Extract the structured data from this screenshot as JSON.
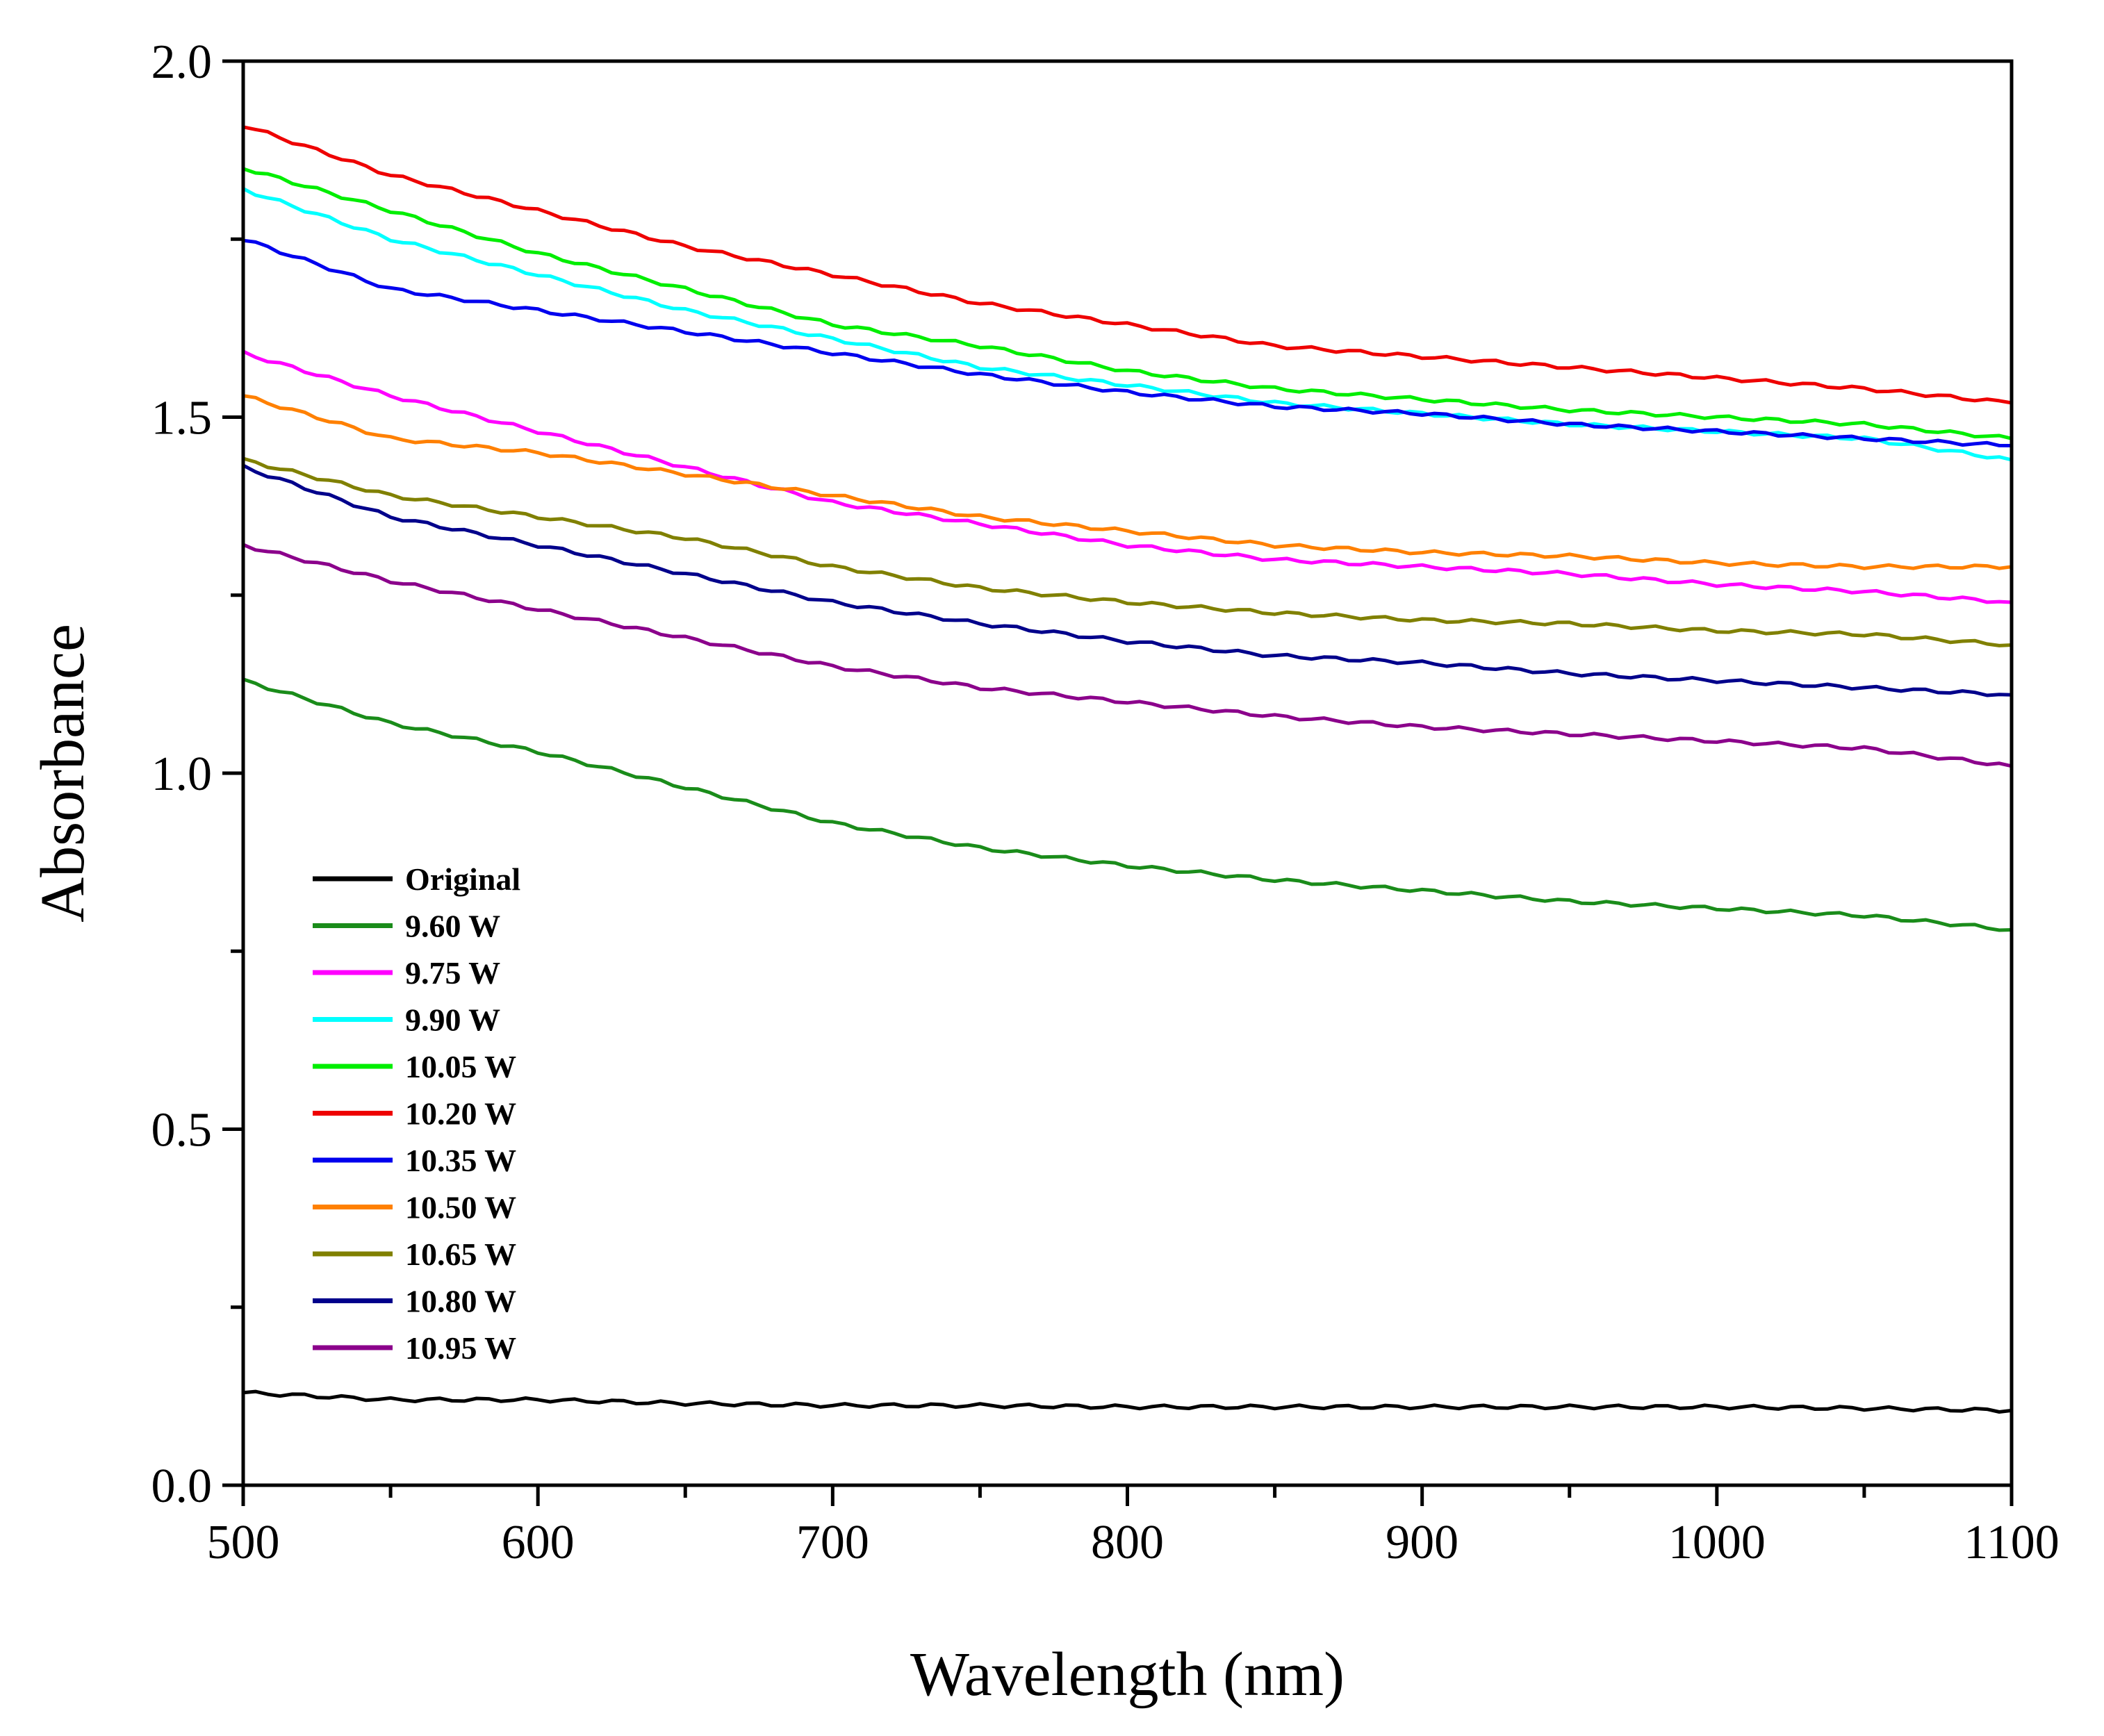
{
  "chart_data": {
    "type": "line",
    "title": "",
    "xlabel": "Wavelength (nm)",
    "ylabel": "Absorbance",
    "xlim": [
      500,
      1100
    ],
    "ylim": [
      0.0,
      2.0
    ],
    "x_ticks": [
      500,
      600,
      700,
      800,
      900,
      1000,
      1100
    ],
    "y_ticks": [
      "0.0",
      "0.5",
      "1.0",
      "1.5",
      "2.0"
    ],
    "grid": false,
    "legend_position": "lower-left",
    "x": [
      500,
      550,
      600,
      650,
      700,
      750,
      800,
      850,
      900,
      950,
      1000,
      1050,
      1100
    ],
    "series": [
      {
        "name": "Original",
        "color": "#000000",
        "values": [
          0.13,
          0.12,
          0.12,
          0.115,
          0.112,
          0.112,
          0.11,
          0.11,
          0.11,
          0.11,
          0.11,
          0.108,
          0.105
        ]
      },
      {
        "name": "9.60 W",
        "color": "#1a8c1a",
        "values": [
          1.13,
          1.07,
          1.03,
          0.98,
          0.93,
          0.895,
          0.87,
          0.85,
          0.835,
          0.82,
          0.81,
          0.8,
          0.78
        ]
      },
      {
        "name": "9.75 W",
        "color": "#ff00ff",
        "values": [
          1.59,
          1.53,
          1.48,
          1.43,
          1.38,
          1.35,
          1.32,
          1.3,
          1.29,
          1.28,
          1.265,
          1.255,
          1.24
        ]
      },
      {
        "name": "9.90 W",
        "color": "#00ffff",
        "values": [
          1.82,
          1.75,
          1.7,
          1.65,
          1.61,
          1.57,
          1.545,
          1.52,
          1.505,
          1.49,
          1.48,
          1.47,
          1.44
        ]
      },
      {
        "name": "10.05 W",
        "color": "#00ee00",
        "values": [
          1.85,
          1.79,
          1.73,
          1.68,
          1.63,
          1.6,
          1.565,
          1.54,
          1.525,
          1.51,
          1.5,
          1.49,
          1.47
        ]
      },
      {
        "name": "10.20 W",
        "color": "#ee0000",
        "values": [
          1.91,
          1.84,
          1.79,
          1.74,
          1.7,
          1.66,
          1.63,
          1.6,
          1.585,
          1.57,
          1.555,
          1.54,
          1.52
        ]
      },
      {
        "name": "10.35 W",
        "color": "#0000ee",
        "values": [
          1.75,
          1.68,
          1.65,
          1.62,
          1.59,
          1.56,
          1.535,
          1.515,
          1.505,
          1.49,
          1.48,
          1.47,
          1.46
        ]
      },
      {
        "name": "10.50 W",
        "color": "#ff8000",
        "values": [
          1.53,
          1.47,
          1.45,
          1.42,
          1.39,
          1.36,
          1.34,
          1.32,
          1.31,
          1.305,
          1.295,
          1.29,
          1.29
        ]
      },
      {
        "name": "10.65 W",
        "color": "#808000",
        "values": [
          1.44,
          1.39,
          1.36,
          1.33,
          1.29,
          1.26,
          1.24,
          1.225,
          1.215,
          1.21,
          1.2,
          1.195,
          1.18
        ]
      },
      {
        "name": "10.80 W",
        "color": "#00008b",
        "values": [
          1.43,
          1.36,
          1.32,
          1.28,
          1.24,
          1.21,
          1.185,
          1.165,
          1.155,
          1.14,
          1.13,
          1.12,
          1.11
        ]
      },
      {
        "name": "10.95 W",
        "color": "#8b008b",
        "values": [
          1.32,
          1.27,
          1.23,
          1.19,
          1.15,
          1.12,
          1.1,
          1.08,
          1.065,
          1.055,
          1.045,
          1.035,
          1.01
        ]
      }
    ]
  }
}
